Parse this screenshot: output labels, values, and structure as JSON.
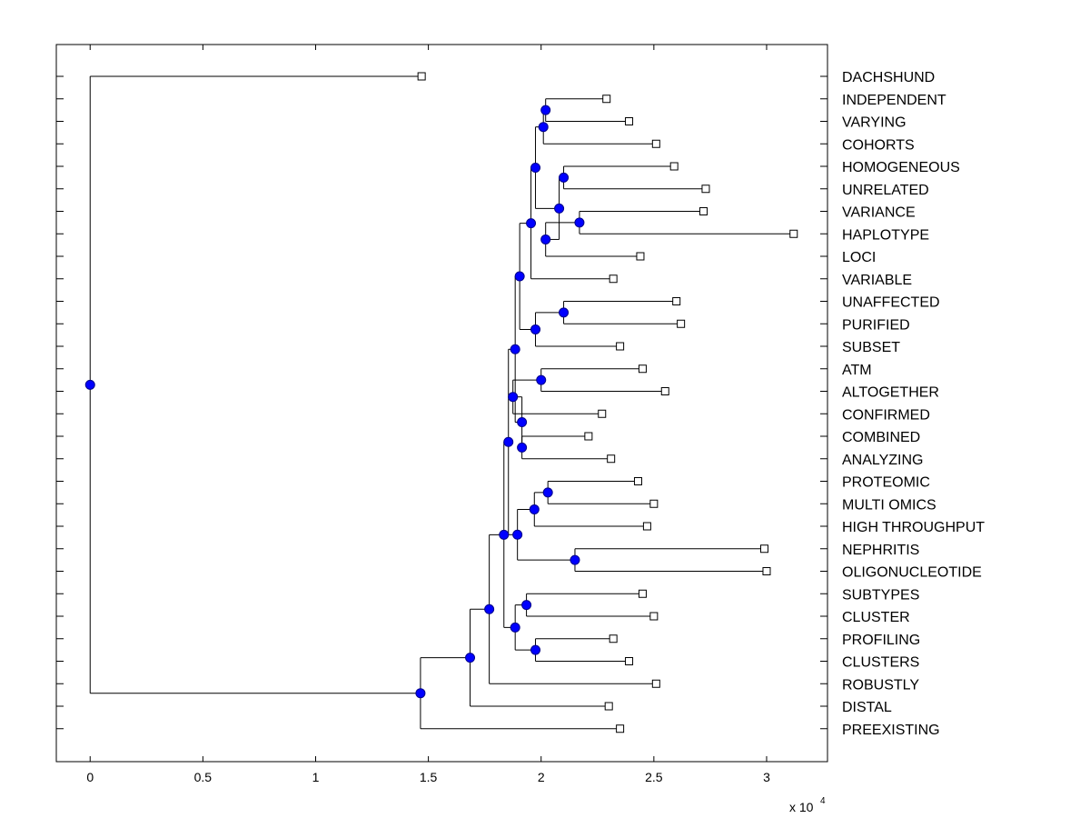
{
  "chart_data": {
    "type": "dendrogram",
    "title": "",
    "xlabel": "",
    "ylabel": "",
    "x_scale_base": "x 10",
    "x_scale_exponent": "4",
    "xlim": [
      -0.15,
      3.27
    ],
    "xticks": [
      0,
      0.5,
      1,
      1.5,
      2,
      2.5,
      3
    ],
    "xtick_labels": [
      "0",
      "0.5",
      "1",
      "1.5",
      "2",
      "2.5",
      "3"
    ],
    "leaf_labels": [
      "DACHSHUND",
      "INDEPENDENT",
      "VARYING",
      "COHORTS",
      "HOMOGENEOUS",
      "UNRELATED",
      "VARIANCE",
      "HAPLOTYPE",
      "LOCI",
      "VARIABLE",
      "UNAFFECTED",
      "PURIFIED",
      "SUBSET",
      "ATM",
      "ALTOGETHER",
      "CONFIRMED",
      "COMBINED",
      "ANALYZING",
      "PROTEOMIC",
      "MULTI OMICS",
      "HIGH THROUGHPUT",
      "NEPHRITIS",
      "OLIGONUCLEOTIDE",
      "SUBTYPES",
      "CLUSTER",
      "PROFILING",
      "CLUSTERS",
      "ROBUSTLY",
      "DISTAL",
      "PREEXISTING"
    ],
    "leaf_values": [
      1.47,
      2.29,
      2.39,
      2.51,
      2.59,
      2.73,
      2.72,
      3.12,
      2.44,
      2.32,
      2.6,
      2.62,
      2.35,
      2.45,
      2.55,
      2.27,
      2.21,
      2.31,
      2.43,
      2.5,
      2.47,
      2.99,
      3.0,
      2.45,
      2.5,
      2.32,
      2.39,
      2.51,
      2.3,
      2.35
    ],
    "tree": {
      "x": 0.0,
      "children": [
        {
          "leaf": 0
        },
        {
          "x": 1.465,
          "children": [
            {
              "x": 1.685,
              "children": [
                {
                  "x": 1.77,
                  "children": [
                    {
                      "x": 1.835,
                      "children": [
                        {
                          "x": 1.855,
                          "children": [
                            {
                              "x": 1.885,
                              "children": [
                                {
                                  "x": 1.905,
                                  "children": [
                                    {
                                      "x": 1.955,
                                      "children": [
                                        {
                                          "x": 1.975,
                                          "children": [
                                            {
                                              "x": 2.01,
                                              "children": [
                                                {
                                                  "x": 2.02,
                                                  "children": [
                                                    {
                                                      "leaf": 1
                                                    },
                                                    {
                                                      "leaf": 2
                                                    }
                                                  ]
                                                },
                                                {
                                                  "leaf": 3
                                                }
                                              ]
                                            },
                                            {
                                              "x": 2.08,
                                              "children": [
                                                {
                                                  "x": 2.1,
                                                  "children": [
                                                    {
                                                      "leaf": 4
                                                    },
                                                    {
                                                      "leaf": 5
                                                    }
                                                  ]
                                                },
                                                {
                                                  "x": 2.02,
                                                  "children": [
                                                    {
                                                      "x": 2.17,
                                                      "children": [
                                                        {
                                                          "leaf": 6
                                                        },
                                                        {
                                                          "leaf": 7
                                                        }
                                                      ]
                                                    },
                                                    {
                                                      "leaf": 8
                                                    }
                                                  ]
                                                }
                                              ]
                                            }
                                          ]
                                        },
                                        {
                                          "leaf": 9
                                        }
                                      ]
                                    },
                                    {
                                      "x": 1.975,
                                      "children": [
                                        {
                                          "x": 2.1,
                                          "children": [
                                            {
                                              "leaf": 10
                                            },
                                            {
                                              "leaf": 11
                                            }
                                          ]
                                        },
                                        {
                                          "leaf": 12
                                        }
                                      ]
                                    }
                                  ]
                                },
                                {
                                  "x": 1.915,
                                  "children": [
                                    {
                                      "x": 1.875,
                                      "children": [
                                        {
                                          "x": 2.0,
                                          "children": [
                                            {
                                              "leaf": 13
                                            },
                                            {
                                              "leaf": 14
                                            }
                                          ]
                                        },
                                        {
                                          "leaf": 15
                                        }
                                      ]
                                    },
                                    {
                                      "x": 1.915,
                                      "children": [
                                        {
                                          "leaf": 16
                                        },
                                        {
                                          "leaf": 17
                                        }
                                      ]
                                    }
                                  ]
                                }
                              ]
                            },
                            {
                              "x": 1.895,
                              "children": [
                                {
                                  "x": 1.97,
                                  "children": [
                                    {
                                      "x": 2.03,
                                      "children": [
                                        {
                                          "leaf": 18
                                        },
                                        {
                                          "leaf": 19
                                        }
                                      ]
                                    },
                                    {
                                      "leaf": 20
                                    }
                                  ]
                                },
                                {
                                  "x": 2.15,
                                  "children": [
                                    {
                                      "leaf": 21
                                    },
                                    {
                                      "leaf": 22
                                    }
                                  ]
                                }
                              ]
                            }
                          ]
                        },
                        {
                          "x": 1.885,
                          "children": [
                            {
                              "x": 1.935,
                              "children": [
                                {
                                  "leaf": 23
                                },
                                {
                                  "leaf": 24
                                }
                              ]
                            },
                            {
                              "x": 1.975,
                              "children": [
                                {
                                  "leaf": 25
                                },
                                {
                                  "leaf": 26
                                }
                              ]
                            }
                          ]
                        }
                      ]
                    },
                    {
                      "leaf": 27
                    }
                  ]
                },
                {
                  "leaf": 28
                }
              ]
            },
            {
              "leaf": 29
            }
          ]
        }
      ]
    },
    "colors": {
      "node_fill": "#0000ff",
      "node_stroke": "#00008b",
      "line": "#000000",
      "leaf_marker_fill": "#ffffff",
      "axes": "#000000",
      "background": "#ffffff"
    },
    "grid": false,
    "legend": "none"
  }
}
